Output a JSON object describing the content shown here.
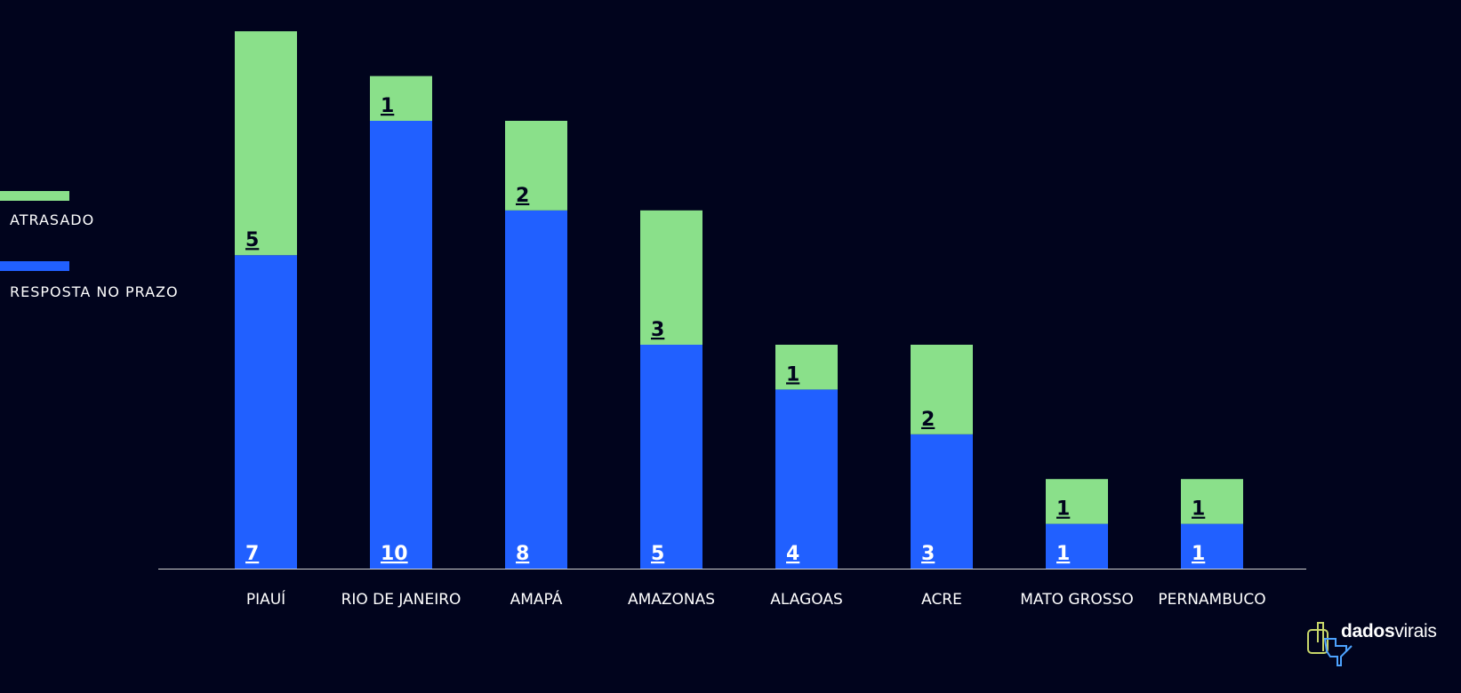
{
  "chart_data": {
    "type": "bar",
    "stacked": true,
    "categories": [
      "PIAUÍ",
      "RIO DE JANEIRO",
      "AMAPÁ",
      "AMAZONAS",
      "ALAGOAS",
      "ACRE",
      "MATO GROSSO",
      "PERNAMBUCO"
    ],
    "series": [
      {
        "name": "RESPOSTA NO PRAZO",
        "color": "#2160ff",
        "label_color": "#ffffff",
        "values": [
          7,
          10,
          8,
          5,
          4,
          3,
          1,
          1
        ]
      },
      {
        "name": "ATRASADO",
        "color": "#8ae08a",
        "label_color": "#01041d",
        "values": [
          5,
          1,
          2,
          3,
          1,
          2,
          1,
          1
        ]
      }
    ],
    "ylim": [
      0,
      12
    ],
    "grid": false,
    "legend": "left",
    "axis_color": "#d0d0d0"
  },
  "legend": {
    "items": [
      {
        "label": "ATRASADO",
        "color": "#8ae08a"
      },
      {
        "label": "RESPOSTA NO PRAZO",
        "color": "#2160ff"
      }
    ]
  },
  "brand": {
    "bold": "dados",
    "light": "virais",
    "icon": "dadosvirais-logo-icon"
  }
}
